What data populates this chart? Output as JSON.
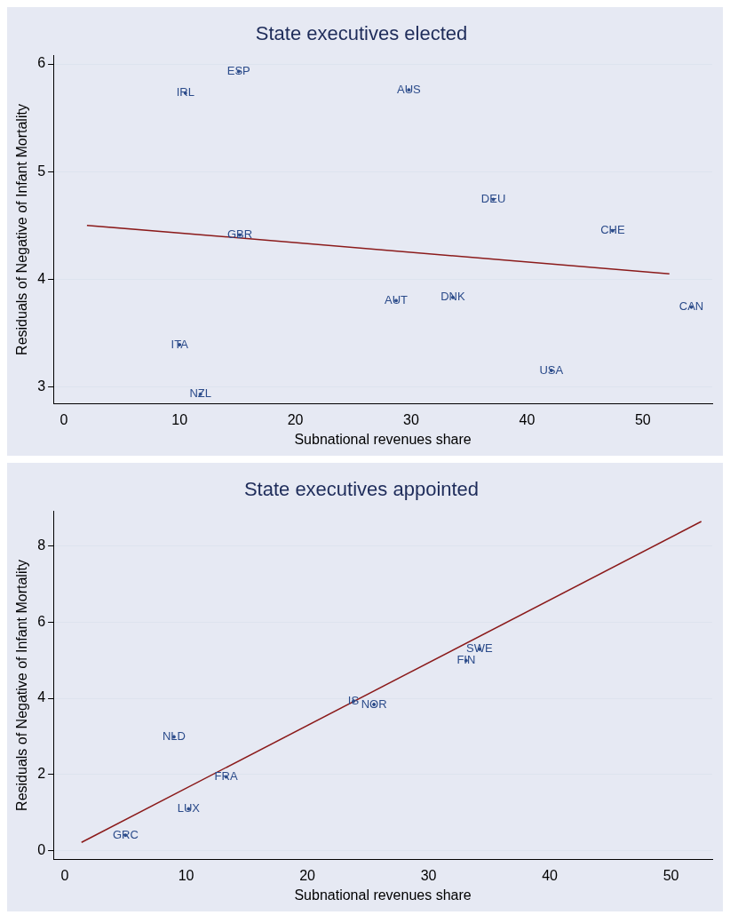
{
  "chart_data": [
    {
      "type": "scatter",
      "title": "State executives elected",
      "xlabel": "Subnational revenues share",
      "ylabel": "Residuals of Negative of Infant Mortality",
      "xlim": [
        -0.9,
        56
      ],
      "ylim": [
        2.84,
        6.08
      ],
      "xticks": [
        0,
        10,
        20,
        30,
        40,
        50
      ],
      "yticks": [
        3,
        4,
        5,
        6
      ],
      "grid": "y",
      "legend": false,
      "series": [
        {
          "type": "scatter",
          "color": "#2b4b8a",
          "x": [
            15.1,
            10.5,
            29.8,
            37.1,
            47.4,
            15.2,
            28.7,
            33.6,
            54.2,
            10.0,
            42.1,
            11.8
          ],
          "values": [
            5.93,
            5.73,
            5.76,
            4.74,
            4.45,
            4.41,
            3.8,
            3.83,
            3.74,
            3.39,
            3.15,
            2.93
          ],
          "value_labels": [
            "ESP",
            "IRL",
            "AUS",
            "DEU",
            "CHE",
            "GBR",
            "AUT",
            "DNK",
            "CAN",
            "ITA",
            "USA",
            "NZL"
          ]
        },
        {
          "type": "line",
          "color": "#8b1a1a",
          "x": [
            2,
            52.3
          ],
          "values": [
            4.5,
            4.05
          ]
        }
      ]
    },
    {
      "type": "scatter",
      "title": "State executives appointed",
      "xlabel": "Subnational revenues share",
      "ylabel": "Residuals of Negative of Infant Mortality",
      "xlim": [
        -0.95,
        53.4
      ],
      "ylim": [
        -0.23,
        8.91
      ],
      "xticks": [
        0,
        10,
        20,
        30,
        40,
        50
      ],
      "yticks": [
        0,
        2,
        4,
        6,
        8
      ],
      "grid": "y",
      "legend": false,
      "series": [
        {
          "type": "scatter",
          "color": "#2b4b8a",
          "x": [
            34.2,
            33.1,
            23.8,
            25.5,
            9.0,
            13.3,
            10.2,
            5.0
          ],
          "values": [
            5.29,
            4.99,
            3.92,
            3.84,
            2.99,
            1.94,
            1.1,
            0.41
          ],
          "value_labels": [
            "SWE",
            "FIN",
            "IS",
            "NOR",
            "NLD",
            "FRA",
            "LUX",
            "GRC"
          ]
        },
        {
          "type": "line",
          "color": "#8b1a1a",
          "x": [
            1.37,
            52.5
          ],
          "values": [
            0.22,
            8.64
          ]
        }
      ]
    }
  ]
}
